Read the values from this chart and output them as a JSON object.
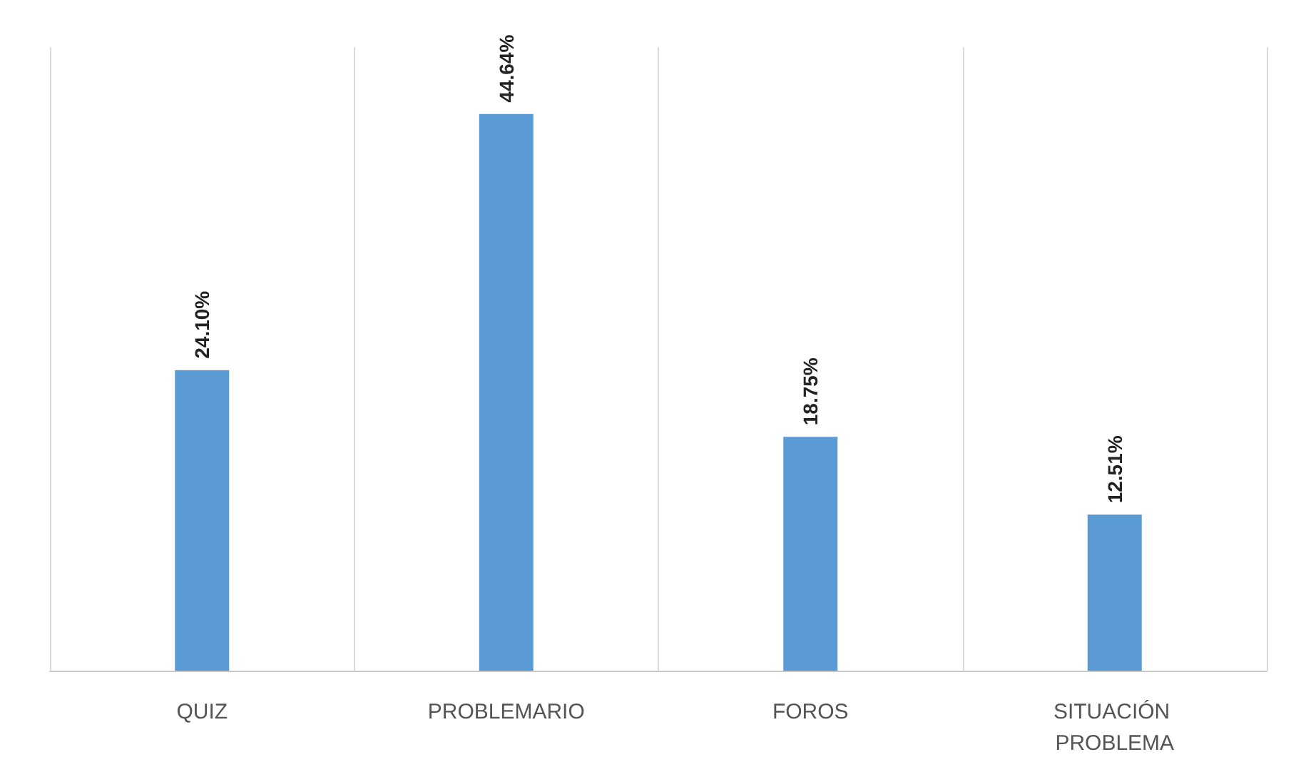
{
  "chart_data": {
    "type": "bar",
    "categories": [
      "QUIZ",
      "PROBLEMARIO",
      "FOROS",
      "SITUACIÓN PROBLEMA"
    ],
    "values": [
      24.1,
      44.64,
      18.75,
      12.51
    ],
    "value_labels": [
      "24.10%",
      "44.64%",
      "18.75%",
      "12.51%"
    ],
    "color": "#5b9bd5",
    "grid": "x"
  }
}
